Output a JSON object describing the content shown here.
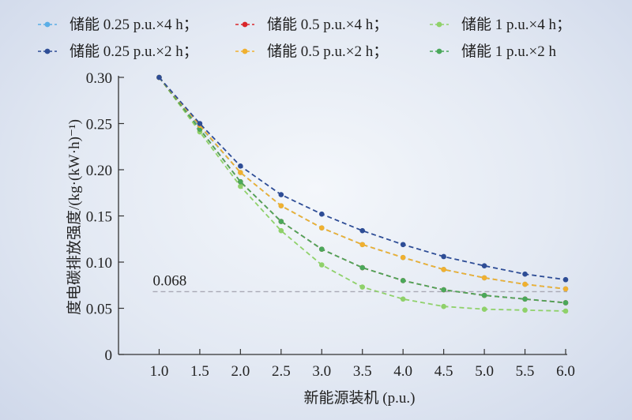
{
  "chart_data": {
    "type": "line",
    "xlabel": "新能源装机 (p.u.)",
    "ylabel": "度电碳排放强度/(kg·(kW·h)⁻¹)",
    "x": [
      1.0,
      1.5,
      2.0,
      2.5,
      3.0,
      3.5,
      4.0,
      4.5,
      5.0,
      5.5,
      6.0
    ],
    "xticks": [
      "1.0",
      "1.5",
      "2.0",
      "2.5",
      "3.0",
      "3.5",
      "4.0",
      "4.5",
      "5.0",
      "5.5",
      "6.0"
    ],
    "xlim": [
      0.5,
      6.0
    ],
    "ylim": [
      0,
      0.3
    ],
    "yticks": [
      "0",
      "0.05",
      "0.10",
      "0.15",
      "0.20",
      "0.25",
      "0.30"
    ],
    "grid": false,
    "legend_position": "top",
    "reference_line": {
      "y": 0.068,
      "label": "0.068",
      "color": "#a8a8b4"
    },
    "series": [
      {
        "name": "储能 0.25 p.u.×4 h；",
        "color": "#5aaee6",
        "values": [
          0.3,
          0.247,
          0.197,
          0.161,
          0.137,
          0.119,
          0.105,
          0.092,
          0.083,
          0.076,
          0.071
        ]
      },
      {
        "name": "储能 0.5 p.u.×4 h；",
        "color": "#d9262b",
        "values": [
          0.3,
          0.244,
          0.187,
          0.144,
          0.114,
          0.094,
          0.08,
          0.07,
          0.064,
          0.06,
          0.056
        ]
      },
      {
        "name": "储能 1 p.u.×4 h；",
        "color": "#8fd16a",
        "values": [
          0.3,
          0.241,
          0.182,
          0.134,
          0.097,
          0.073,
          0.06,
          0.052,
          0.049,
          0.048,
          0.047
        ]
      },
      {
        "name": "储能 0.25 p.u.×2 h；",
        "color": "#2e4d96",
        "values": [
          0.3,
          0.25,
          0.204,
          0.173,
          0.152,
          0.134,
          0.119,
          0.106,
          0.096,
          0.087,
          0.081
        ]
      },
      {
        "name": "储能 0.5 p.u.×2 h；",
        "color": "#f0b030",
        "values": [
          0.3,
          0.248,
          0.197,
          0.161,
          0.137,
          0.119,
          0.105,
          0.092,
          0.083,
          0.076,
          0.071
        ]
      },
      {
        "name": "储能 1 p.u.×2 h",
        "color": "#4aa85a",
        "values": [
          0.3,
          0.244,
          0.187,
          0.144,
          0.114,
          0.094,
          0.08,
          0.07,
          0.064,
          0.06,
          0.056
        ]
      }
    ]
  }
}
